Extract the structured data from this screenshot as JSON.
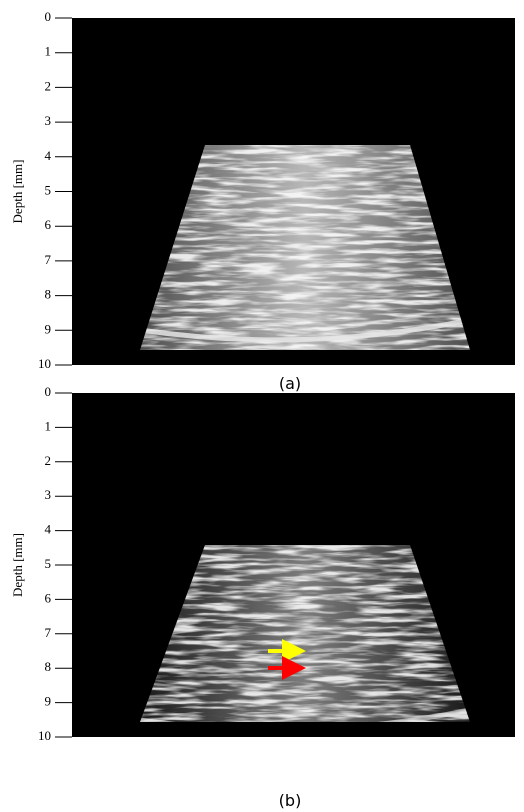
{
  "chart_data": [
    {
      "type": "image",
      "ylabel": "Depth  [mm]",
      "ylim": [
        0,
        10
      ],
      "yticks": [
        0,
        1,
        2,
        3,
        4,
        5,
        6,
        7,
        8,
        9,
        10
      ],
      "caption": "(a)",
      "arrows": []
    },
    {
      "type": "image",
      "ylabel": "Depth  [mm]",
      "ylim": [
        0,
        10
      ],
      "yticks": [
        0,
        1,
        2,
        3,
        4,
        5,
        6,
        7,
        8,
        9,
        10
      ],
      "caption": "(b)",
      "arrows": [
        {
          "color": "#ffff00"
        },
        {
          "color": "#ff0000"
        }
      ]
    }
  ]
}
